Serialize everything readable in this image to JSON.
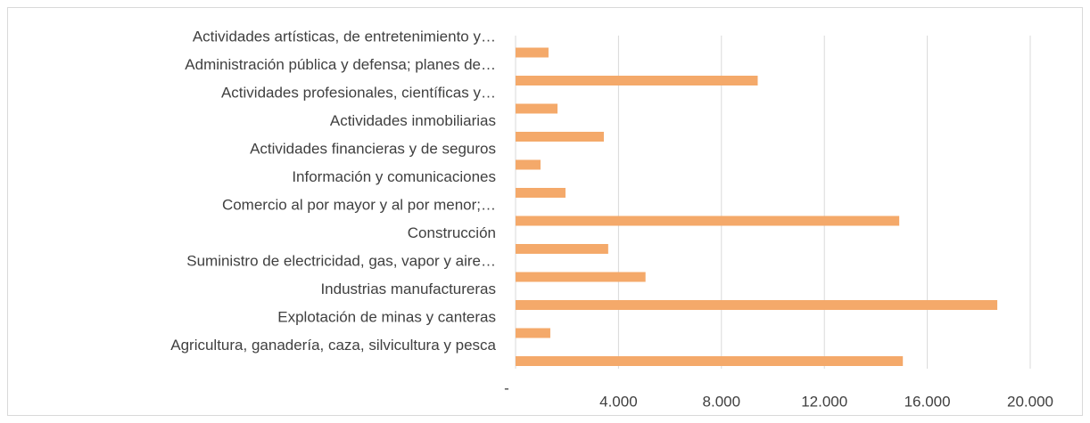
{
  "chart_data": {
    "type": "bar",
    "orientation": "horizontal",
    "categories": [
      "Actividades artísticas, de entretenimiento y…",
      "Administración pública y defensa; planes de…",
      "Actividades profesionales, científicas y…",
      "Actividades inmobiliarias",
      "Actividades financieras y de seguros",
      "Información y comunicaciones",
      "Comercio al por mayor y al por menor;…",
      "Construcción",
      "Suministro de electricidad, gas, vapor y aire…",
      "Industrias manufactureras",
      "Explotación de minas y canteras",
      "Agricultura, ganadería, caza, silvicultura y pesca"
    ],
    "values": [
      1280,
      9410,
      1630,
      3430,
      970,
      1940,
      14910,
      3600,
      5050,
      18720,
      1350,
      15050
    ],
    "color": "#f4a96a",
    "xlim": [
      0,
      20000
    ],
    "xticks": [
      {
        "value": 0,
        "label": "-"
      },
      {
        "value": 4000,
        "label": "4.000"
      },
      {
        "value": 8000,
        "label": "8.000"
      },
      {
        "value": 12000,
        "label": "12.000"
      },
      {
        "value": 16000,
        "label": "16.000"
      },
      {
        "value": 20000,
        "label": "20.000"
      }
    ],
    "grid": true
  }
}
